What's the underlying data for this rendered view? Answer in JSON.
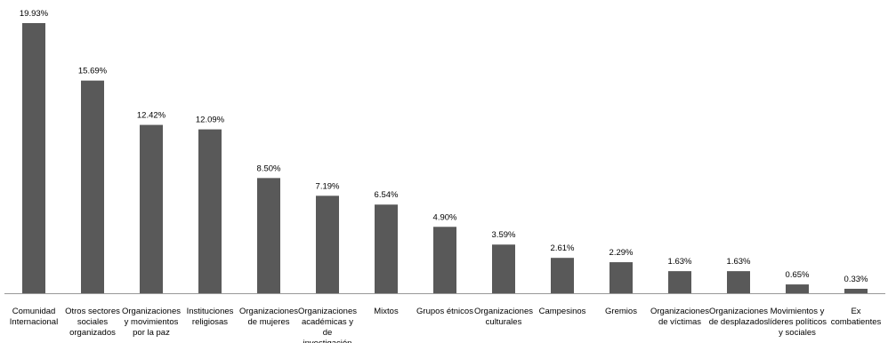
{
  "chart_data": {
    "type": "bar",
    "categories": [
      "Comunidad Internacional",
      "Otros sectores sociales organizados",
      "Organizaciones y movimientos por la paz",
      "Instituciones religiosas",
      "Organizaciones de mujeres",
      "Organizaciones académicas y de investigación",
      "Mixtos",
      "Grupos étnicos",
      "Organizaciones culturales",
      "Campesinos",
      "Gremios",
      "Organizaciones de víctimas",
      "Organizaciones de desplazados",
      "Movimientos y líderes políticos y sociales",
      "Ex combatientes"
    ],
    "values": [
      19.93,
      15.69,
      12.42,
      12.09,
      8.5,
      7.19,
      6.54,
      4.9,
      3.59,
      2.61,
      2.29,
      1.63,
      1.63,
      0.65,
      0.33
    ],
    "value_labels": [
      "19.93%",
      "15.69%",
      "12.42%",
      "12.09%",
      "8.50%",
      "7.19%",
      "6.54%",
      "4.90%",
      "3.59%",
      "2.61%",
      "2.29%",
      "1.63%",
      "1.63%",
      "0.65%",
      "0.33%"
    ],
    "color": "#595959"
  }
}
